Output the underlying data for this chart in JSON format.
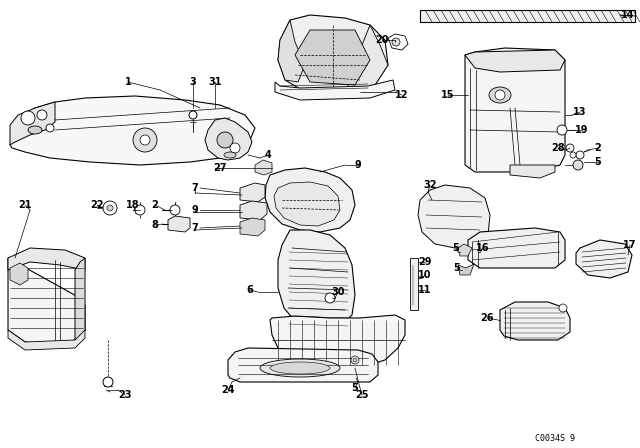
{
  "bg_color": "#ffffff",
  "fig_width": 6.4,
  "fig_height": 4.48,
  "dpi": 100,
  "watermark": "C0034S 9"
}
